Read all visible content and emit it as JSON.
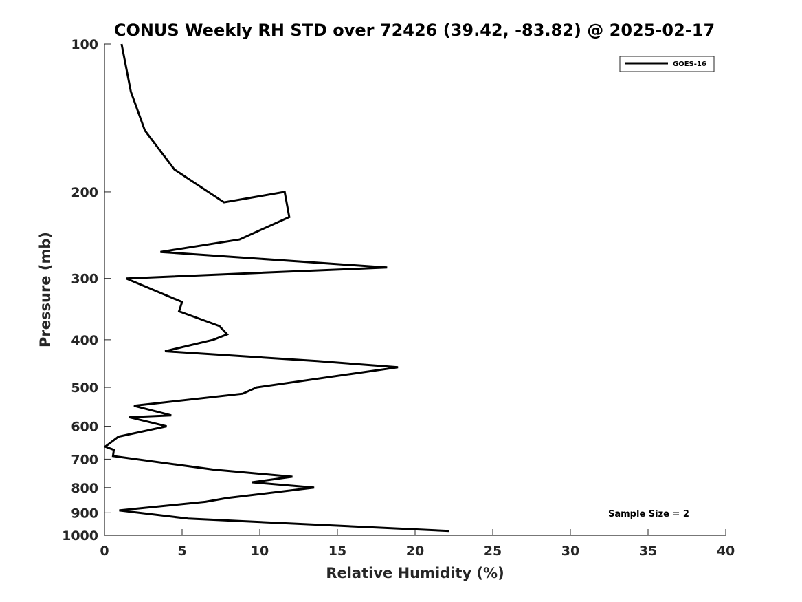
{
  "chart_data": {
    "type": "line",
    "title": "CONUS Weekly RH STD over 72426 (39.42, -83.82) @ 2025-02-17",
    "xlabel": "Relative Humidity (%)",
    "ylabel": "Pressure (mb)",
    "xlim": [
      0,
      40
    ],
    "ylim": [
      100,
      1000
    ],
    "y_scale": "log",
    "y_reversed": true,
    "xticks": [
      "0",
      "5",
      "10",
      "15",
      "20",
      "25",
      "30",
      "35",
      "40"
    ],
    "yticks": [
      "100",
      "200",
      "300",
      "400",
      "500",
      "600",
      "700",
      "800",
      "900",
      "1000"
    ],
    "grid": false,
    "legend": {
      "position": "top-right",
      "entries": [
        "GOES-16"
      ]
    },
    "annotation": "Sample Size = 2",
    "series": [
      {
        "name": "GOES-16",
        "color": "#000000",
        "x": [
          1.1,
          1.7,
          2.6,
          4.5,
          7.7,
          11.6,
          11.9,
          8.7,
          3.6,
          18.2,
          1.4,
          5.0,
          4.8,
          7.4,
          7.9,
          7.0,
          3.9,
          13.7,
          18.9,
          9.8,
          8.9,
          1.9,
          4.3,
          1.6,
          4.0,
          0.9,
          0.05,
          0.6,
          0.55,
          7.0,
          12.1,
          9.5,
          13.5,
          7.9,
          6.5,
          0.95,
          5.4,
          22.2
        ],
        "y": [
          100,
          125,
          150,
          180,
          210,
          200,
          225,
          250,
          265,
          285,
          300,
          335,
          350,
          375,
          390,
          400,
          422,
          442,
          455,
          500,
          515,
          545,
          570,
          575,
          600,
          630,
          660,
          670,
          690,
          735,
          760,
          780,
          800,
          840,
          855,
          890,
          925,
          980
        ]
      }
    ]
  }
}
